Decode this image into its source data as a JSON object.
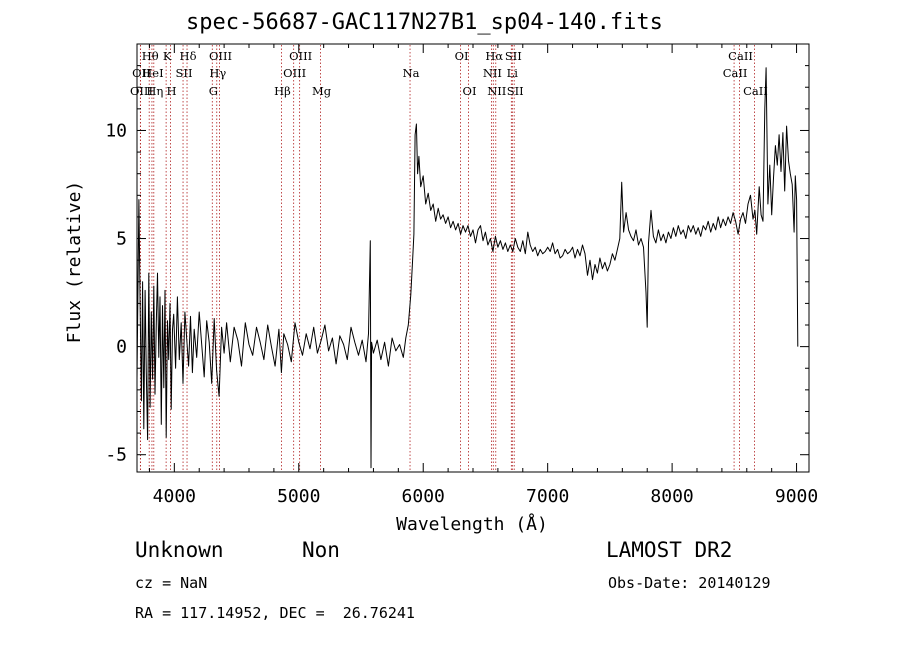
{
  "title": "spec-56687-GAC117N27B1_sp04-140.fits",
  "chart_data": {
    "type": "line",
    "xlabel": "Wavelength (Å)",
    "ylabel": "Flux (relative)",
    "xlim": [
      3700,
      9100
    ],
    "ylim": [
      -5.8,
      14
    ],
    "x_ticks": [
      4000,
      5000,
      6000,
      7000,
      8000,
      9000
    ],
    "y_ticks": [
      -5,
      0,
      5,
      10
    ],
    "grid": false,
    "series": [
      {
        "points": [
          [
            3700,
            -1.5
          ],
          [
            3715,
            6.8
          ],
          [
            3725,
            2.0
          ],
          [
            3735,
            -2.5
          ],
          [
            3745,
            3.0
          ],
          [
            3755,
            -3.8
          ],
          [
            3765,
            2.6
          ],
          [
            3775,
            -1.2
          ],
          [
            3785,
            -4.3
          ],
          [
            3795,
            3.4
          ],
          [
            3805,
            -2.8
          ],
          [
            3815,
            1.6
          ],
          [
            3825,
            -1.5
          ],
          [
            3835,
            2.8
          ],
          [
            3845,
            -2.2
          ],
          [
            3855,
            1.1
          ],
          [
            3865,
            3.4
          ],
          [
            3875,
            -0.5
          ],
          [
            3885,
            2.3
          ],
          [
            3895,
            -3.6
          ],
          [
            3905,
            1.9
          ],
          [
            3915,
            -1.9
          ],
          [
            3925,
            2.6
          ],
          [
            3935,
            -4.2
          ],
          [
            3945,
            1.2
          ],
          [
            3955,
            -0.6
          ],
          [
            3965,
            2.0
          ],
          [
            3975,
            -2.9
          ],
          [
            3985,
            0.8
          ],
          [
            3995,
            1.5
          ],
          [
            4010,
            -1.0
          ],
          [
            4025,
            2.3
          ],
          [
            4040,
            -0.6
          ],
          [
            4055,
            1.1
          ],
          [
            4070,
            -1.7
          ],
          [
            4085,
            1.6
          ],
          [
            4100,
            0.3
          ],
          [
            4115,
            -0.9
          ],
          [
            4130,
            1.4
          ],
          [
            4145,
            -1.2
          ],
          [
            4160,
            0.8
          ],
          [
            4180,
            -0.5
          ],
          [
            4200,
            1.6
          ],
          [
            4220,
            0.1
          ],
          [
            4240,
            -1.4
          ],
          [
            4260,
            1.2
          ],
          [
            4280,
            0.2
          ],
          [
            4300,
            -1.7
          ],
          [
            4320,
            1.3
          ],
          [
            4340,
            -1.1
          ],
          [
            4360,
            -2.3
          ],
          [
            4380,
            0.9
          ],
          [
            4400,
            -0.3
          ],
          [
            4420,
            1.1
          ],
          [
            4450,
            -0.7
          ],
          [
            4480,
            0.9
          ],
          [
            4510,
            0.3
          ],
          [
            4540,
            -0.9
          ],
          [
            4570,
            1.1
          ],
          [
            4600,
            0.1
          ],
          [
            4630,
            -0.4
          ],
          [
            4660,
            0.9
          ],
          [
            4690,
            0.2
          ],
          [
            4720,
            -0.6
          ],
          [
            4750,
            1.0
          ],
          [
            4780,
            0.0
          ],
          [
            4810,
            -0.9
          ],
          [
            4840,
            0.8
          ],
          [
            4860,
            -1.2
          ],
          [
            4880,
            0.6
          ],
          [
            4910,
            0.1
          ],
          [
            4940,
            -0.7
          ],
          [
            4970,
            1.1
          ],
          [
            5000,
            0.2
          ],
          [
            5030,
            -0.4
          ],
          [
            5060,
            0.6
          ],
          [
            5090,
            -0.1
          ],
          [
            5120,
            0.9
          ],
          [
            5150,
            -0.3
          ],
          [
            5180,
            0.3
          ],
          [
            5210,
            1.0
          ],
          [
            5240,
            -0.2
          ],
          [
            5270,
            0.4
          ],
          [
            5300,
            -0.8
          ],
          [
            5330,
            0.5
          ],
          [
            5360,
            0.1
          ],
          [
            5390,
            -0.6
          ],
          [
            5420,
            0.9
          ],
          [
            5450,
            0.2
          ],
          [
            5480,
            -0.4
          ],
          [
            5510,
            0.3
          ],
          [
            5540,
            -0.7
          ],
          [
            5560,
            0.6
          ],
          [
            5575,
            4.9
          ],
          [
            5580,
            -5.6
          ],
          [
            5585,
            0.2
          ],
          [
            5600,
            -0.3
          ],
          [
            5630,
            0.3
          ],
          [
            5660,
            -0.6
          ],
          [
            5690,
            0.2
          ],
          [
            5720,
            -0.9
          ],
          [
            5750,
            0.4
          ],
          [
            5780,
            -0.2
          ],
          [
            5810,
            0.1
          ],
          [
            5840,
            -0.5
          ],
          [
            5860,
            0.4
          ],
          [
            5880,
            1.0
          ],
          [
            5900,
            2.4
          ],
          [
            5915,
            4.0
          ],
          [
            5925,
            5.2
          ],
          [
            5935,
            9.8
          ],
          [
            5945,
            10.3
          ],
          [
            5955,
            8.0
          ],
          [
            5965,
            8.8
          ],
          [
            5980,
            7.4
          ],
          [
            6000,
            7.9
          ],
          [
            6020,
            6.6
          ],
          [
            6040,
            7.1
          ],
          [
            6060,
            6.3
          ],
          [
            6080,
            6.6
          ],
          [
            6100,
            5.8
          ],
          [
            6120,
            6.4
          ],
          [
            6140,
            5.9
          ],
          [
            6160,
            6.1
          ],
          [
            6180,
            5.7
          ],
          [
            6200,
            6.0
          ],
          [
            6220,
            5.5
          ],
          [
            6240,
            5.8
          ],
          [
            6260,
            5.4
          ],
          [
            6280,
            5.7
          ],
          [
            6300,
            5.2
          ],
          [
            6320,
            5.6
          ],
          [
            6340,
            5.3
          ],
          [
            6360,
            5.6
          ],
          [
            6380,
            5.1
          ],
          [
            6400,
            5.4
          ],
          [
            6420,
            4.8
          ],
          [
            6440,
            5.4
          ],
          [
            6460,
            5.6
          ],
          [
            6480,
            4.9
          ],
          [
            6500,
            5.3
          ],
          [
            6520,
            4.7
          ],
          [
            6540,
            5.0
          ],
          [
            6560,
            4.4
          ],
          [
            6580,
            5.1
          ],
          [
            6600,
            4.6
          ],
          [
            6620,
            4.9
          ],
          [
            6640,
            4.5
          ],
          [
            6660,
            4.8
          ],
          [
            6680,
            4.4
          ],
          [
            6700,
            4.7
          ],
          [
            6720,
            4.4
          ],
          [
            6740,
            5.0
          ],
          [
            6760,
            4.6
          ],
          [
            6780,
            4.4
          ],
          [
            6800,
            4.9
          ],
          [
            6820,
            4.3
          ],
          [
            6840,
            5.3
          ],
          [
            6860,
            4.7
          ],
          [
            6880,
            4.4
          ],
          [
            6900,
            4.6
          ],
          [
            6920,
            4.2
          ],
          [
            6940,
            4.5
          ],
          [
            6960,
            4.3
          ],
          [
            6980,
            4.4
          ],
          [
            7000,
            4.6
          ],
          [
            7020,
            4.4
          ],
          [
            7040,
            4.8
          ],
          [
            7060,
            4.3
          ],
          [
            7080,
            4.5
          ],
          [
            7100,
            4.1
          ],
          [
            7120,
            4.2
          ],
          [
            7140,
            4.5
          ],
          [
            7160,
            4.3
          ],
          [
            7180,
            4.4
          ],
          [
            7200,
            4.6
          ],
          [
            7220,
            4.1
          ],
          [
            7240,
            4.5
          ],
          [
            7260,
            4.2
          ],
          [
            7280,
            4.7
          ],
          [
            7300,
            4.3
          ],
          [
            7320,
            3.3
          ],
          [
            7340,
            4.0
          ],
          [
            7360,
            3.1
          ],
          [
            7380,
            3.8
          ],
          [
            7400,
            3.4
          ],
          [
            7420,
            4.1
          ],
          [
            7440,
            3.6
          ],
          [
            7460,
            3.9
          ],
          [
            7480,
            3.5
          ],
          [
            7500,
            3.8
          ],
          [
            7520,
            4.3
          ],
          [
            7540,
            4.0
          ],
          [
            7560,
            4.5
          ],
          [
            7580,
            5.0
          ],
          [
            7595,
            7.6
          ],
          [
            7610,
            5.3
          ],
          [
            7630,
            6.2
          ],
          [
            7650,
            5.4
          ],
          [
            7670,
            5.1
          ],
          [
            7690,
            4.9
          ],
          [
            7710,
            5.4
          ],
          [
            7730,
            4.7
          ],
          [
            7750,
            5.0
          ],
          [
            7770,
            4.6
          ],
          [
            7790,
            2.5
          ],
          [
            7800,
            0.9
          ],
          [
            7810,
            4.8
          ],
          [
            7830,
            6.3
          ],
          [
            7850,
            5.1
          ],
          [
            7870,
            4.8
          ],
          [
            7890,
            5.4
          ],
          [
            7910,
            4.9
          ],
          [
            7930,
            5.2
          ],
          [
            7950,
            4.8
          ],
          [
            7970,
            5.3
          ],
          [
            7990,
            5.0
          ],
          [
            8010,
            5.5
          ],
          [
            8030,
            5.1
          ],
          [
            8050,
            5.6
          ],
          [
            8070,
            5.2
          ],
          [
            8090,
            5.4
          ],
          [
            8110,
            5.0
          ],
          [
            8130,
            5.6
          ],
          [
            8150,
            5.3
          ],
          [
            8170,
            5.6
          ],
          [
            8190,
            5.2
          ],
          [
            8210,
            5.5
          ],
          [
            8230,
            5.1
          ],
          [
            8250,
            5.6
          ],
          [
            8270,
            5.4
          ],
          [
            8290,
            5.8
          ],
          [
            8310,
            5.3
          ],
          [
            8330,
            5.7
          ],
          [
            8350,
            5.4
          ],
          [
            8370,
            6.0
          ],
          [
            8390,
            5.5
          ],
          [
            8410,
            5.9
          ],
          [
            8430,
            5.6
          ],
          [
            8450,
            6.0
          ],
          [
            8470,
            5.7
          ],
          [
            8490,
            6.2
          ],
          [
            8510,
            5.8
          ],
          [
            8530,
            5.2
          ],
          [
            8550,
            5.9
          ],
          [
            8570,
            6.2
          ],
          [
            8590,
            5.7
          ],
          [
            8610,
            6.6
          ],
          [
            8630,
            7.0
          ],
          [
            8650,
            5.9
          ],
          [
            8665,
            6.3
          ],
          [
            8680,
            5.2
          ],
          [
            8700,
            7.4
          ],
          [
            8715,
            6.1
          ],
          [
            8730,
            5.8
          ],
          [
            8745,
            11.0
          ],
          [
            8755,
            12.9
          ],
          [
            8770,
            6.6
          ],
          [
            8785,
            8.4
          ],
          [
            8800,
            6.1
          ],
          [
            8815,
            7.8
          ],
          [
            8830,
            9.3
          ],
          [
            8845,
            8.4
          ],
          [
            8860,
            9.8
          ],
          [
            8875,
            8.1
          ],
          [
            8890,
            9.9
          ],
          [
            8905,
            7.2
          ],
          [
            8920,
            10.2
          ],
          [
            8935,
            8.6
          ],
          [
            8950,
            8.0
          ],
          [
            8965,
            7.5
          ],
          [
            8980,
            5.3
          ],
          [
            8990,
            7.9
          ],
          [
            9000,
            6.8
          ],
          [
            9010,
            0.0
          ]
        ]
      }
    ],
    "line_markers": [
      {
        "label": "Hθ",
        "x": 3798,
        "row": 0
      },
      {
        "label": "OII",
        "x": 3727,
        "row": 1
      },
      {
        "label": "OIII",
        "x": 3728,
        "row": 2
      },
      {
        "label": "HeI",
        "x": 3820,
        "row": 1
      },
      {
        "label": "Hη",
        "x": 3835,
        "row": 2
      },
      {
        "label": "K",
        "x": 3934,
        "row": 0
      },
      {
        "label": "SII",
        "x": 4070,
        "row": 1
      },
      {
        "label": "H",
        "x": 3969,
        "row": 2
      },
      {
        "label": "Hδ",
        "x": 4102,
        "row": 0
      },
      {
        "label": "OIII",
        "x": 4363,
        "row": 0
      },
      {
        "label": "Hγ",
        "x": 4341,
        "row": 1
      },
      {
        "label": "G",
        "x": 4305,
        "row": 2
      },
      {
        "label": "OIII",
        "x": 5007,
        "row": 0
      },
      {
        "label": "OIII",
        "x": 4959,
        "row": 1
      },
      {
        "label": "Hβ",
        "x": 4861,
        "row": 2
      },
      {
        "label": "Mg",
        "x": 5175,
        "row": 2
      },
      {
        "label": "Na",
        "x": 5894,
        "row": 1
      },
      {
        "label": "OI",
        "x": 6300,
        "row": 0
      },
      {
        "label": "OI",
        "x": 6364,
        "row": 2
      },
      {
        "label": "Hα",
        "x": 6563,
        "row": 0
      },
      {
        "label": "NII",
        "x": 6548,
        "row": 1
      },
      {
        "label": "NII",
        "x": 6583,
        "row": 2
      },
      {
        "label": "SII",
        "x": 6716,
        "row": 0
      },
      {
        "label": "Li",
        "x": 6708,
        "row": 1
      },
      {
        "label": "SII",
        "x": 6731,
        "row": 2
      },
      {
        "label": "CaII",
        "x": 8542,
        "row": 0
      },
      {
        "label": "CaII",
        "x": 8498,
        "row": 1
      },
      {
        "label": "CaII",
        "x": 8662,
        "row": 2
      }
    ]
  },
  "info": {
    "class": "Unknown",
    "subclass": "Non",
    "cz": "cz = NaN",
    "coords": "RA = 117.14952, DEC =  26.76241",
    "survey": "LAMOST DR2",
    "obs_date": "Obs-Date: 20140129"
  }
}
